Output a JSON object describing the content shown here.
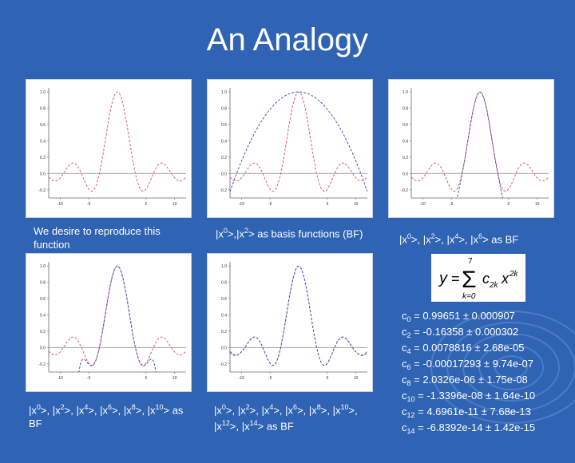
{
  "title": "An Analogy",
  "captions": {
    "p1": "We desire to reproduce this function",
    "p2_parts": [
      "|x",
      "0",
      ">,|x",
      "2",
      "> as basis functions (BF)"
    ],
    "p3_parts": [
      "|x",
      "0",
      ">, |x",
      "2",
      ">, |x",
      "4",
      ">, |x",
      "6",
      "> as BF"
    ],
    "p4_parts": [
      "|x",
      "0",
      ">, |x",
      "2",
      ">, |x",
      "4",
      ">, |x",
      "6",
      ">, |x",
      "8",
      ">, |x",
      "10",
      "> as BF"
    ],
    "p5_parts": [
      "|x",
      "0",
      ">, |x",
      "2",
      ">, |x",
      "4",
      ">, |x",
      "6",
      ">, |x",
      "8",
      ">, |x",
      "10",
      ">, |x",
      "12",
      ">, |x",
      "14",
      "> as BF"
    ]
  },
  "equation": {
    "lhs": "y",
    "upper": "7",
    "lower": "k=0",
    "term": "c",
    "sub": "2k",
    "var": "x",
    "exp": "2k"
  },
  "coefficients": [
    {
      "name": "c",
      "sub": "0",
      "value": "= 0.99651 ± 0.000907"
    },
    {
      "name": "c",
      "sub": "2",
      "value": "= -0.16358 ± 0.000302"
    },
    {
      "name": "c",
      "sub": "4",
      "value": "= 0.0078816 ± 2.68e-05"
    },
    {
      "name": "c",
      "sub": "6",
      "value": "= -0.00017293 ± 9.74e-07"
    },
    {
      "name": "c",
      "sub": "8",
      "value": "= 2.0326e-06 ± 1.75e-08"
    },
    {
      "name": "c",
      "sub": "10",
      "value": "= -1.3396e-08 ± 1.64e-10"
    },
    {
      "name": "c",
      "sub": "12",
      "value": "= 4.6961e-11 ± 7.68e-13"
    },
    {
      "name": "c",
      "sub": "14",
      "value": "= -6.8392e-14 ± 1.42e-15"
    }
  ],
  "chart_data": [
    {
      "type": "line",
      "xticks": [
        "-10",
        "-5",
        "5",
        "10"
      ],
      "yticks": [
        "1.0",
        "0.8",
        "0.6",
        "0.4",
        "0.2",
        "0.0",
        "-0.2"
      ],
      "xlim": [
        -12,
        12
      ],
      "ylim": [
        -0.3,
        1.05
      ],
      "series": [
        {
          "kind": "target",
          "color": "#e05a6a"
        }
      ]
    },
    {
      "type": "line",
      "xticks": [
        "-10",
        "-5",
        "5",
        "10"
      ],
      "yticks": [
        "1.0",
        "0.8",
        "0.6",
        "0.4",
        "0.2",
        "0.0",
        "-0.2"
      ],
      "xlim": [
        -12,
        12
      ],
      "ylim": [
        -0.3,
        1.05
      ],
      "series": [
        {
          "kind": "target",
          "color": "#e05a6a"
        },
        {
          "kind": "fit",
          "terms": 2,
          "color": "#4a4fbf"
        }
      ]
    },
    {
      "type": "line",
      "xticks": [
        "-10",
        "-5",
        "5",
        "10"
      ],
      "yticks": [
        "1.0",
        "0.8",
        "0.6",
        "0.4",
        "0.2",
        "0.0",
        "-0.2"
      ],
      "xlim": [
        -12,
        12
      ],
      "ylim": [
        -0.3,
        1.05
      ],
      "series": [
        {
          "kind": "target",
          "color": "#e05a6a"
        },
        {
          "kind": "fit",
          "terms": 4,
          "color": "#4a4fbf"
        }
      ]
    },
    {
      "type": "line",
      "xticks": [
        "-10",
        "-5",
        "5",
        "10"
      ],
      "yticks": [
        "1.0",
        "0.8",
        "0.6",
        "0.4",
        "0.2",
        "0.0",
        "-0.2"
      ],
      "xlim": [
        -12,
        12
      ],
      "ylim": [
        -0.3,
        1.05
      ],
      "series": [
        {
          "kind": "target",
          "color": "#e05a6a"
        },
        {
          "kind": "fit",
          "terms": 6,
          "color": "#4a4fbf"
        }
      ]
    },
    {
      "type": "line",
      "xticks": [
        "-10",
        "-5",
        "5",
        "10"
      ],
      "yticks": [
        "1.0",
        "0.8",
        "0.6",
        "0.4",
        "0.2",
        "0.0",
        "-0.2"
      ],
      "xlim": [
        -12,
        12
      ],
      "ylim": [
        -0.3,
        1.05
      ],
      "series": [
        {
          "kind": "target",
          "color": "#e05a6a"
        },
        {
          "kind": "fit",
          "terms": 8,
          "color": "#4a4fbf"
        }
      ]
    }
  ]
}
